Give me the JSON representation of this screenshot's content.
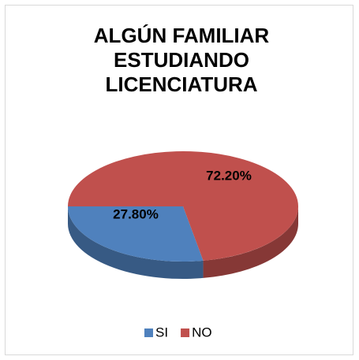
{
  "chart_data": {
    "type": "pie",
    "title": "ALGÚN FAMILIAR ESTUDIANDO LICENCIATURA",
    "categories": [
      "SI",
      "NO"
    ],
    "values": [
      27.8,
      72.2
    ],
    "value_labels": [
      "27.80%",
      "72.20%"
    ],
    "colors": [
      "#4f81bd",
      "#c0504d"
    ],
    "legend": "bottom"
  }
}
